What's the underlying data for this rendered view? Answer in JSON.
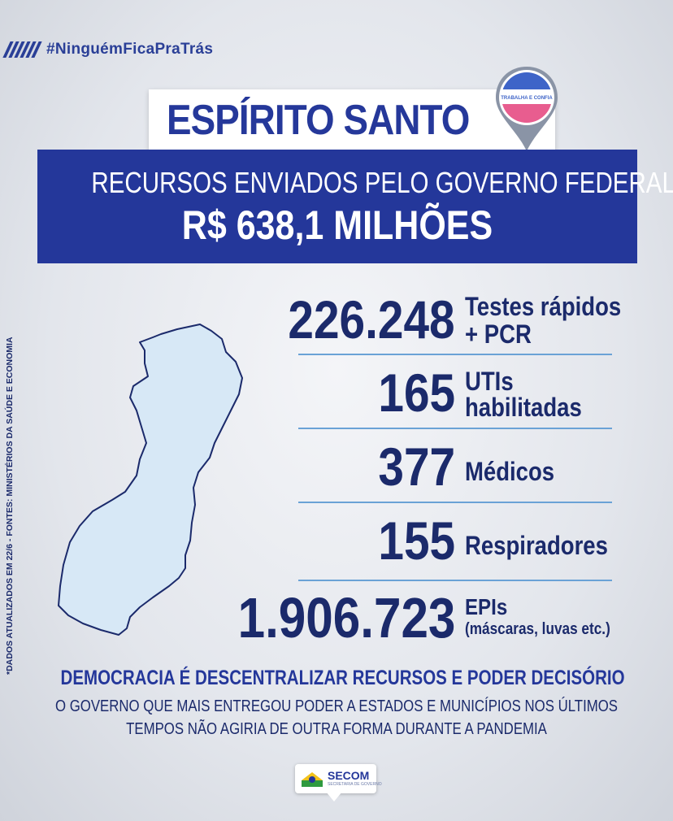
{
  "hashtag": "#NinguémFicaPraTrás",
  "state_title": "ESPÍRITO SANTO",
  "flag": {
    "motto": "TRABALHA E CONFIA",
    "colors": [
      "#3e64c8",
      "#ffffff",
      "#e85d8f"
    ]
  },
  "banner": {
    "line1": "RECURSOS ENVIADOS PELO GOVERNO FEDERAL",
    "line2": "R$ 638,1 MILHÕES"
  },
  "sources_note": "*DADOS ATUALIZADOS EM 22/6 - FONTES: MINISTÉRIOS DA SAÚDE E ECONOMIA",
  "stats": [
    {
      "value": "226.248",
      "label_line1": "Testes rápidos",
      "label_line2": "+ PCR"
    },
    {
      "value": "165",
      "label_line1": "UTIs",
      "label_line2": "habilitadas"
    },
    {
      "value": "377",
      "label_line1": "Médicos",
      "label_line2": ""
    },
    {
      "value": "155",
      "label_line1": "Respiradores",
      "label_line2": ""
    },
    {
      "value": "1.906.723",
      "label_line1": "EPIs",
      "label_line2": "(máscaras, luvas etc.)"
    }
  ],
  "headline": "DEMOCRACIA É DESCENTRALIZAR RECURSOS E PODER DECISÓRIO",
  "subline1": "O GOVERNO QUE MAIS ENTREGOU PODER A ESTADOS E MUNICÍPIOS NOS ÚLTIMOS",
  "subline2": "TEMPOS NÃO AGIRIA DE OUTRA FORMA DURANTE A PANDEMIA",
  "secom": {
    "name": "SECOM",
    "subtitle": "SECRETARIA DE GOVERNO"
  },
  "colors": {
    "primary": "#24379a",
    "dark_text": "#1b2a6b",
    "map_fill": "#d7e8f6",
    "divider": "#6aa2d6"
  }
}
